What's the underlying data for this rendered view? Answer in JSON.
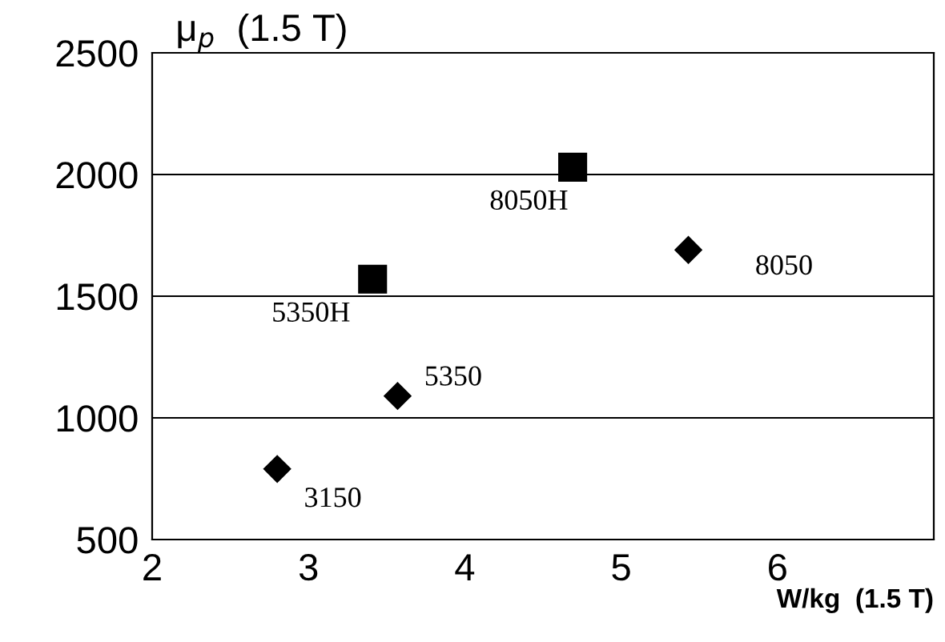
{
  "chart_data": {
    "type": "scatter",
    "ylabel": "μ$_{p}$  (1.5 T)",
    "xlabel": "W/kg  (1.5 T)",
    "xlim": [
      2,
      7
    ],
    "xticks": [
      2,
      3,
      4,
      5,
      6
    ],
    "ylim": [
      500,
      2500
    ],
    "yticks": [
      500,
      1000,
      1500,
      2000,
      2500
    ],
    "grid": "y",
    "series": [
      {
        "color": "#000000",
        "marker": "diamond",
        "x": [
          2.8,
          3.57,
          5.43
        ],
        "values": [
          790,
          1090,
          1690
        ]
      },
      {
        "color": "#000000",
        "marker": "square",
        "x": [
          3.41,
          4.69
        ],
        "values": [
          1570,
          2030
        ]
      }
    ],
    "annotations": [
      {
        "text": "3150",
        "x": 2.8,
        "y": 790
      },
      {
        "text": "5350",
        "x": 3.57,
        "y": 1090
      },
      {
        "text": "8050",
        "x": 5.43,
        "y": 1690
      },
      {
        "text": "5350H",
        "x": 3.41,
        "y": 1570
      },
      {
        "text": "8050H",
        "x": 4.69,
        "y": 2030
      }
    ]
  }
}
